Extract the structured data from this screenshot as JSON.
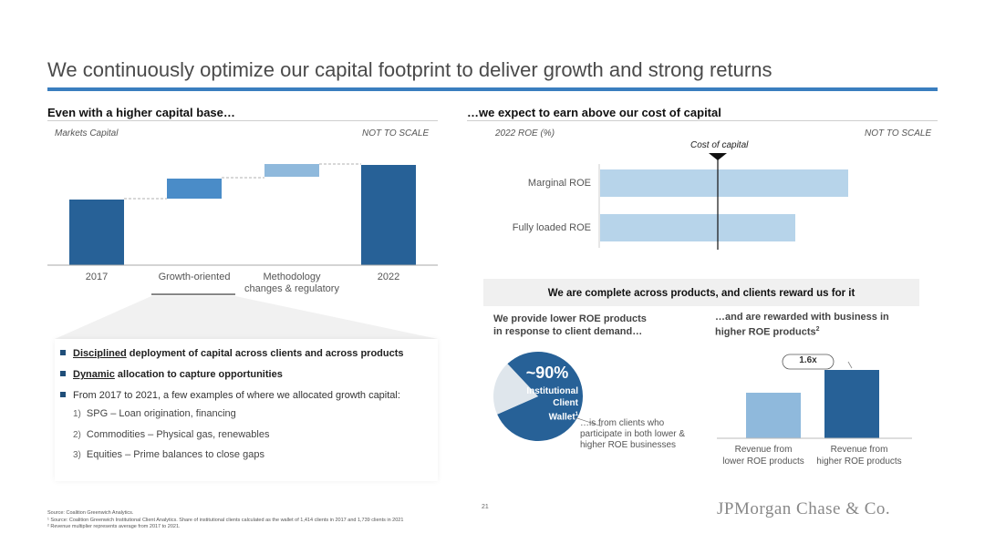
{
  "title": "We continuously optimize our capital footprint to deliver growth and strong returns",
  "left": {
    "heading": "Even with a higher capital base…",
    "caption_left": "Markets Capital",
    "caption_right": "NOT TO SCALE",
    "categories": [
      "2017",
      "Growth-oriented",
      "Methodology changes & regulatory",
      "2022"
    ],
    "category_lines": [
      [
        "2017"
      ],
      [
        "Growth-oriented"
      ],
      [
        "Methodology",
        "changes & regulatory"
      ],
      [
        "2022"
      ]
    ]
  },
  "right": {
    "heading": "…we expect to earn above our cost of capital",
    "caption_left": "2022 ROE (%)",
    "caption_right": "NOT TO SCALE",
    "marker_label": "Cost of capital",
    "bars": [
      "Marginal ROE",
      "Fully loaded ROE"
    ]
  },
  "bullets": {
    "items": [
      {
        "prefix": "Disciplined",
        "rest": " deployment of capital across clients and across products"
      },
      {
        "prefix": "Dynamic",
        "rest": " allocation to capture opportunities"
      },
      {
        "prefix": "",
        "rest": "From 2017 to 2021, a few examples of where we allocated growth capital:"
      }
    ],
    "sub_items": [
      {
        "num": "1)",
        "text": "SPG – Loan origination, financing"
      },
      {
        "num": "2)",
        "text": "Commodities – Physical gas, renewables"
      },
      {
        "num": "3)",
        "text": "Equities – Prime balances to close gaps"
      }
    ]
  },
  "complete": {
    "heading": "We are complete across products, and clients reward us for it",
    "left_sub": [
      "We provide lower ROE products",
      "in response to client demand…"
    ],
    "right_sub": [
      "…and are rewarded with business in",
      "higher ROE products"
    ],
    "right_sub_sup": "2",
    "pie_value": "~90%",
    "pie_label": [
      "Institutional",
      "Client",
      "Wallet"
    ],
    "pie_label_sup": "1",
    "pie_note": [
      "…is from clients who",
      "participate in both lower &",
      "higher ROE businesses"
    ],
    "multiplier": "1.6x",
    "rev_labels": [
      [
        "Revenue from",
        "lower ROE products"
      ],
      [
        "Revenue from",
        "higher ROE products"
      ]
    ],
    "chart_data": {
      "type": "bar",
      "categories": [
        "Revenue from lower ROE products",
        "Revenue from higher ROE products"
      ],
      "values": [
        1,
        1.6
      ]
    }
  },
  "footer": {
    "notes": [
      "Source: Coalition Greenwich Analytics.",
      "¹ Source: Coalition Greenwich Institutional Client Analytics. Share of institutional clients calculated as the wallet of 1,414 clients in 2017 and 1,739 clients in 2021",
      "² Revenue multiplier represents average from 2017 to 2021."
    ],
    "page": "21",
    "logo": "JPMorgan Chase & Co."
  },
  "colors": {
    "accent": "#3a7ebf",
    "dark_blue": "#276197",
    "mid_blue": "#4a8cc8",
    "light_blue": "#8fb9dc",
    "pale_blue": "#b7d4ea"
  }
}
